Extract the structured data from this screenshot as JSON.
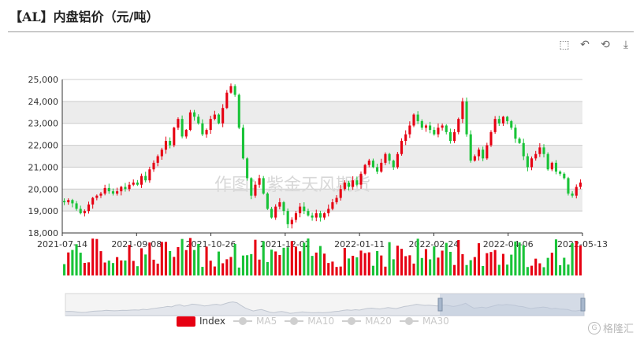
{
  "title": "【AL】内盘铝价（元/吨）",
  "toolbox": [
    {
      "name": "zoom-icon",
      "glyph": "⬚"
    },
    {
      "name": "zoom-reset-icon",
      "glyph": "↶"
    },
    {
      "name": "restore-icon",
      "glyph": "⟲"
    },
    {
      "name": "save-icon",
      "glyph": "⤓"
    }
  ],
  "watermark": "作图：紫金天风期货",
  "brand": {
    "mark": "G",
    "text": "格隆汇"
  },
  "legend": {
    "index": "Index",
    "ma5": "MA5",
    "ma10": "MA10",
    "ma20": "MA20",
    "ma30": "MA30"
  },
  "colors": {
    "up": "#e60012",
    "down": "#19c338",
    "band": "#ececec"
  },
  "chart_data": {
    "type": "candlestick",
    "ylim": [
      18000,
      25000
    ],
    "ytick_values": [
      18000,
      19000,
      20000,
      21000,
      22000,
      23000,
      24000,
      25000
    ],
    "ytick_labels": [
      "18,000",
      "19,000",
      "20,000",
      "21,000",
      "22,000",
      "23,000",
      "24,000",
      "25,000"
    ],
    "xtick_labels": [
      "2021-07-14",
      "2021-09-08",
      "2021-10-26",
      "2021-12-02",
      "2022-01-11",
      "2022-02-24",
      "2022-04-06",
      "2022-05-13"
    ],
    "close_path": [
      19400,
      19500,
      19350,
      19100,
      18900,
      19000,
      19300,
      19600,
      19700,
      19800,
      20050,
      19900,
      19800,
      19900,
      20100,
      20000,
      20200,
      20300,
      20200,
      20600,
      20400,
      20900,
      21200,
      21500,
      21800,
      22200,
      22000,
      22800,
      23200,
      22400,
      22700,
      23500,
      23300,
      23000,
      22500,
      22700,
      23200,
      23400,
      23000,
      23700,
      24400,
      24700,
      24300,
      22800,
      21400,
      20500,
      19700,
      20200,
      20500,
      19800,
      19100,
      18700,
      19200,
      19400,
      19000,
      18400,
      18600,
      18900,
      19200,
      19000,
      18800,
      18700,
      18900,
      18700,
      18900,
      19100,
      19400,
      19600,
      20000,
      20300,
      20100,
      20400,
      20200,
      20700,
      21100,
      21300,
      21000,
      20800,
      21200,
      21600,
      21300,
      21000,
      21600,
      22200,
      22500,
      22900,
      23400,
      23100,
      22800,
      22900,
      22700,
      22500,
      22800,
      22900,
      22600,
      22200,
      22600,
      23200,
      24000,
      22500,
      21300,
      21500,
      21800,
      21400,
      22000,
      22600,
      23200,
      23000,
      23300,
      23100,
      22800,
      22300,
      22100,
      21500,
      21000,
      21400,
      21600,
      21900,
      21600,
      20900,
      21200,
      20800,
      20700,
      20500,
      19800,
      19700,
      20100,
      20300
    ]
  }
}
